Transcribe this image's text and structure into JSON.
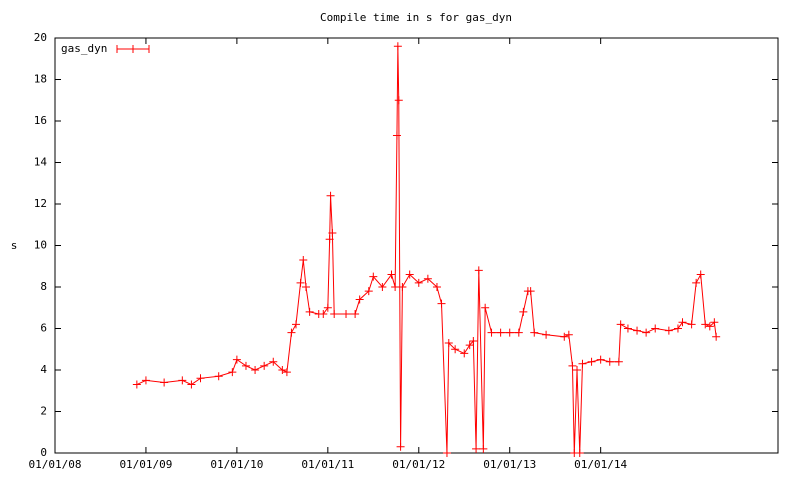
{
  "chart_data": {
    "type": "line",
    "title": "Compile time in s for gas_dyn",
    "y_label": "s",
    "x": [
      2008.9,
      2009.0,
      2009.2,
      2009.4,
      2009.5,
      2009.6,
      2009.8,
      2009.95,
      2010.0,
      2010.1,
      2010.2,
      2010.3,
      2010.4,
      2010.5,
      2010.55,
      2010.6,
      2010.65,
      2010.7,
      2010.73,
      2010.76,
      2010.8,
      2010.9,
      2010.95,
      2011.0,
      2011.02,
      2011.03,
      2011.05,
      2011.07,
      2011.2,
      2011.3,
      2011.35,
      2011.45,
      2011.5,
      2011.6,
      2011.7,
      2011.74,
      2011.76,
      2011.77,
      2011.78,
      2011.8,
      2011.82,
      2011.9,
      2012.0,
      2012.1,
      2012.2,
      2012.25,
      2012.31,
      2012.33,
      2012.4,
      2012.5,
      2012.56,
      2012.6,
      2012.63,
      2012.66,
      2012.71,
      2012.73,
      2012.8,
      2012.9,
      2013.0,
      2013.1,
      2013.15,
      2013.2,
      2013.23,
      2013.27,
      2013.4,
      2013.6,
      2013.65,
      2013.69,
      2013.71,
      2013.74,
      2013.77,
      2013.8,
      2013.9,
      2014.0,
      2014.1,
      2014.2,
      2014.22,
      2014.3,
      2014.4,
      2014.5,
      2014.6,
      2014.75,
      2014.85,
      2014.9,
      2015.0,
      2015.05,
      2015.1,
      2015.15,
      2015.2,
      2015.25,
      2015.27
    ],
    "series": [
      {
        "name": "gas_dyn",
        "color": "#ff0000",
        "values": [
          3.3,
          3.5,
          3.4,
          3.5,
          3.3,
          3.6,
          3.7,
          3.9,
          4.5,
          4.2,
          4.0,
          4.2,
          4.4,
          4.0,
          3.9,
          5.8,
          6.2,
          8.2,
          9.3,
          8.0,
          6.8,
          6.7,
          6.7,
          7.0,
          10.3,
          12.4,
          10.6,
          6.7,
          6.7,
          6.7,
          7.4,
          7.8,
          8.5,
          8.0,
          8.6,
          8.0,
          15.3,
          19.6,
          17.0,
          0.3,
          8.0,
          8.6,
          8.2,
          8.4,
          8.0,
          7.2,
          0,
          5.3,
          5.0,
          4.8,
          5.2,
          5.4,
          0.2,
          8.8,
          0.2,
          7.0,
          5.8,
          5.8,
          5.8,
          5.8,
          6.8,
          7.8,
          7.8,
          5.8,
          5.7,
          5.6,
          5.7,
          4.2,
          0,
          4.0,
          0,
          4.3,
          4.4,
          4.5,
          4.4,
          4.4,
          6.2,
          6.0,
          5.9,
          5.8,
          6.0,
          5.9,
          6.0,
          6.3,
          6.2,
          8.2,
          8.6,
          6.2,
          6.1,
          6.3,
          5.6
        ]
      }
    ],
    "xlim": [
      2008,
      2015.95
    ],
    "xticks": [
      {
        "value": 2008,
        "label": "01/01/08"
      },
      {
        "value": 2009,
        "label": "01/01/09"
      },
      {
        "value": 2010,
        "label": "01/01/10"
      },
      {
        "value": 2011,
        "label": "01/01/11"
      },
      {
        "value": 2012,
        "label": "01/01/12"
      },
      {
        "value": 2013,
        "label": "01/01/13"
      },
      {
        "value": 2014,
        "label": "01/01/14"
      }
    ],
    "ylim": [
      0,
      20
    ],
    "yticks": [
      0,
      2,
      4,
      6,
      8,
      10,
      12,
      14,
      16,
      18,
      20
    ],
    "legend": "top-left",
    "grid": false
  }
}
